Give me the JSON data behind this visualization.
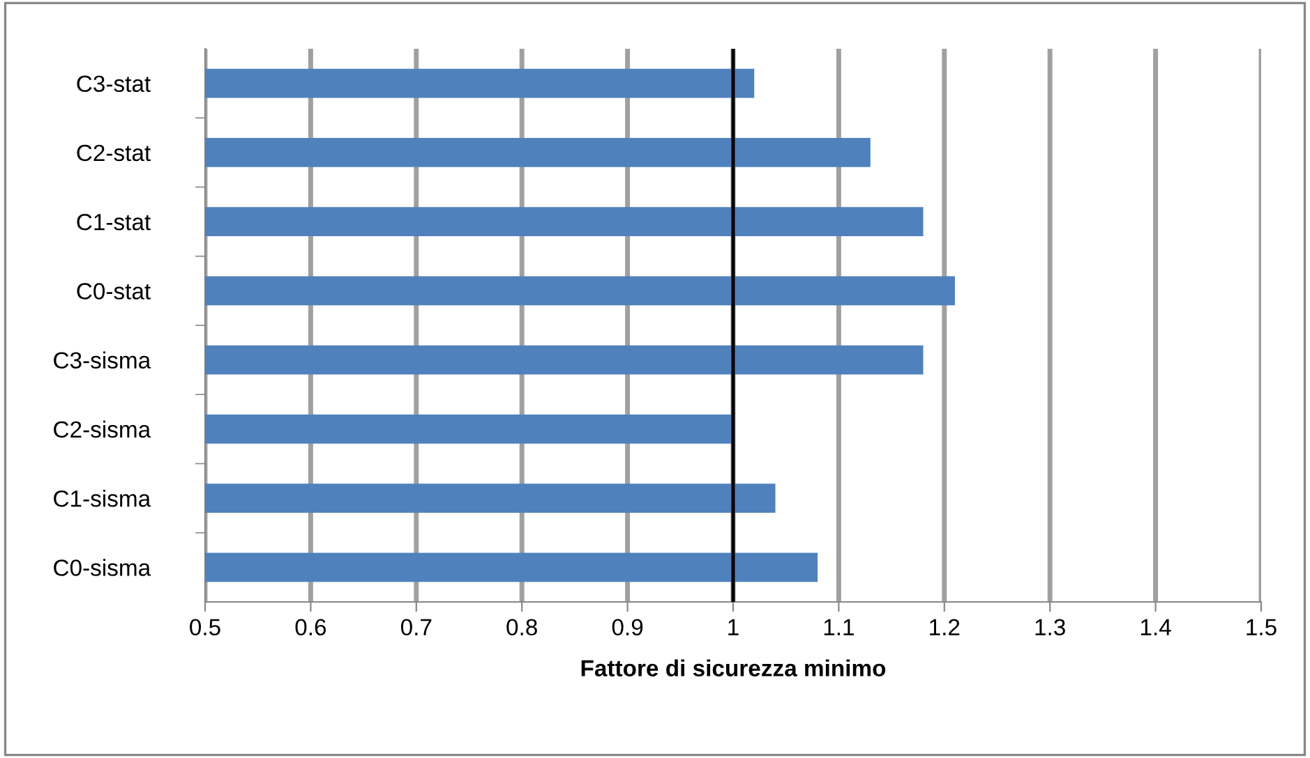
{
  "chart_data": {
    "type": "bar",
    "orientation": "horizontal",
    "xlabel": "Fattore di sicurezza minimo",
    "categories": [
      "C3-stat",
      "C2-stat",
      "C1-stat",
      "C0-stat",
      "C3-sisma",
      "C2-sisma",
      "C1-sisma",
      "C0-sisma"
    ],
    "values": [
      1.02,
      1.13,
      1.18,
      1.21,
      1.18,
      1.0,
      1.04,
      1.08
    ],
    "color": "#4f81bd",
    "xlim": [
      0.5,
      1.5
    ],
    "xticks": [
      0.5,
      0.6,
      0.7,
      0.8,
      0.9,
      1,
      1.1,
      1.2,
      1.3,
      1.4,
      1.5
    ],
    "grid": "x",
    "ref_lines": [
      {
        "axis": "x",
        "value": 1,
        "color": "#000000"
      }
    ]
  }
}
